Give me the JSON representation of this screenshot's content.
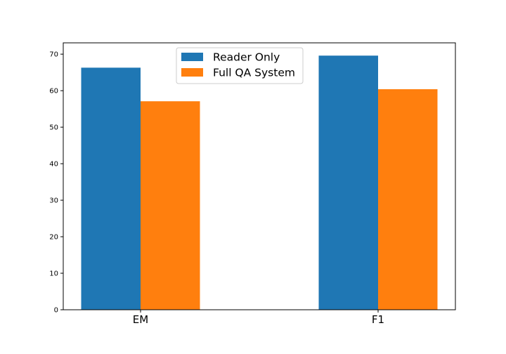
{
  "chart_data": {
    "type": "bar",
    "categories": [
      "EM",
      "F1"
    ],
    "series": [
      {
        "name": "Reader Only",
        "values": [
          66.3,
          69.6
        ],
        "color": "#1f77b4"
      },
      {
        "name": "Full QA System",
        "values": [
          57.1,
          60.4
        ],
        "color": "#ff7f0e"
      }
    ],
    "ylim": [
      0,
      73.1
    ],
    "yticks": [
      0,
      10,
      20,
      30,
      40,
      50,
      60,
      70
    ],
    "ytick_labels": [
      "0",
      "10",
      "20",
      "30",
      "40",
      "50",
      "60",
      "70"
    ],
    "title": "",
    "xlabel": "",
    "ylabel": "",
    "legend_position": "upper center",
    "grid": false
  }
}
